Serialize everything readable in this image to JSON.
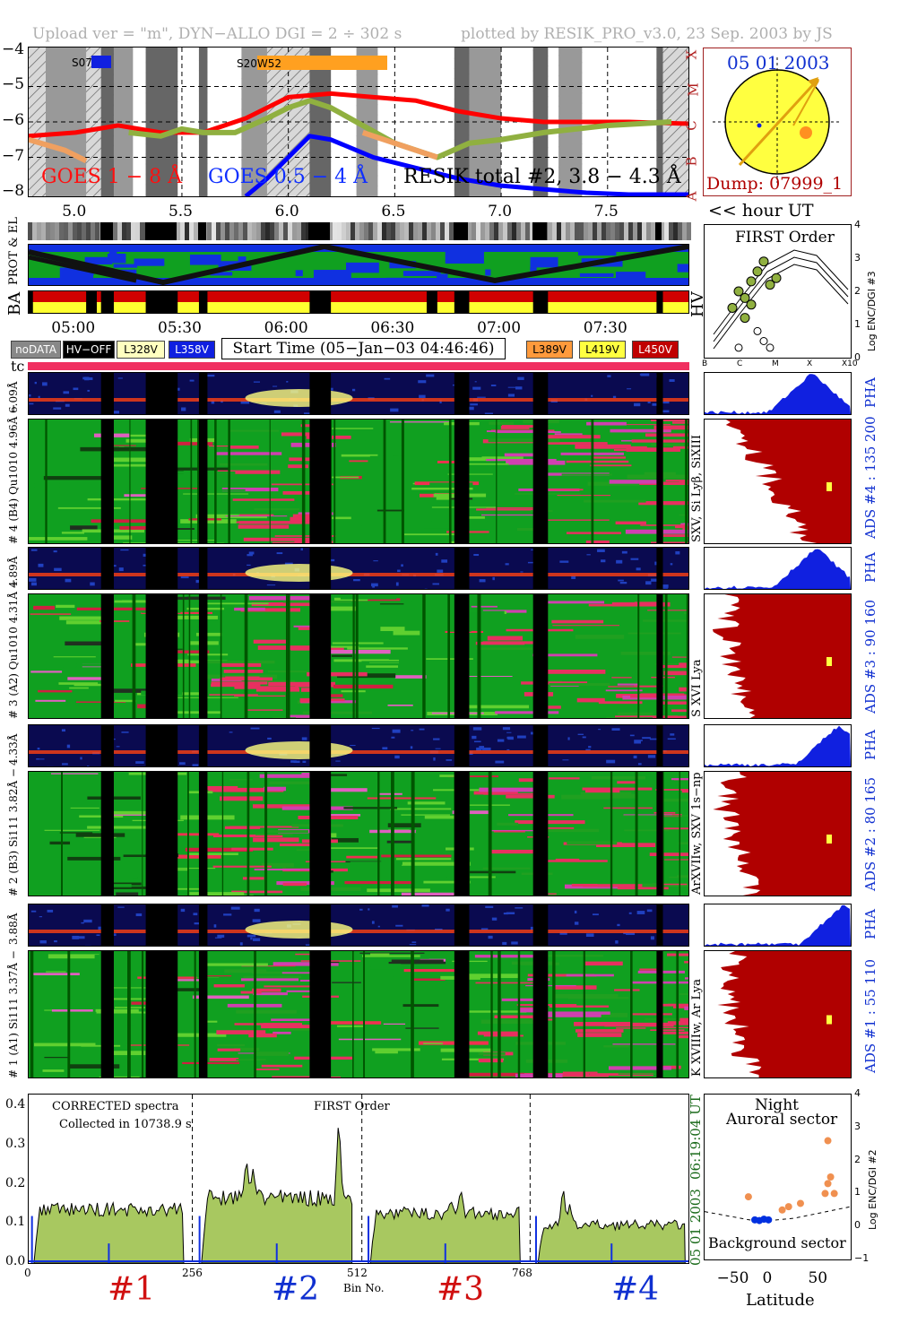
{
  "header": {
    "left": "Upload ver = \"m\", DYN−ALLO DGI =   2 ÷ 302 s",
    "right": "plotted by RESIK_PRO_v3.0, 23 Sep. 2003 by JS"
  },
  "goes_panel": {
    "y_ticks": [
      "−4",
      "−5",
      "−6",
      "−7",
      "−8"
    ],
    "class_letters": [
      "X",
      "M",
      "C",
      "B",
      "A"
    ],
    "region_labels": [
      "S07",
      "S20W52"
    ],
    "legend": [
      "GOES 1 − 8 Å",
      "GOES 0.5 − 4 Å",
      "RESIK total #2, 3.8 − 4.3 Å"
    ],
    "x_ticks": [
      "5.0",
      "5.5",
      "6.0",
      "6.5",
      "7.0",
      "7.5"
    ],
    "x_unit": "<< hour UT"
  },
  "sun_panel": {
    "date": "05 01 2003",
    "dump": "Dump: 07999_1"
  },
  "status_panel": {
    "prot_label": "PROT & EL",
    "ba_label": "BA",
    "hv_label": "HV",
    "time_ticks": [
      "05:00",
      "05:30",
      "06:00",
      "06:30",
      "07:00",
      "07:30"
    ],
    "legend_left": [
      {
        "text": "noDATA",
        "bg": "#888888",
        "fg": "#ffffff"
      },
      {
        "text": "HV−OFF",
        "bg": "#000000",
        "fg": "#ffffff"
      },
      {
        "text": "L328V",
        "bg": "#ffffc0",
        "fg": "#000000"
      },
      {
        "text": "L358V",
        "bg": "#1020e0",
        "fg": "#ffffff"
      }
    ],
    "start_time": "Start Time (05−Jan−03 04:46:46)",
    "legend_right": [
      {
        "text": "L389V",
        "bg": "#ff9a3c",
        "fg": "#000000"
      },
      {
        "text": "L419V",
        "bg": "#ffff40",
        "fg": "#000000"
      },
      {
        "text": "L450V",
        "bg": "#c00000",
        "fg": "#ffffff"
      }
    ],
    "tc_label": "tc"
  },
  "first_order_panel": {
    "title": "FIRST Order",
    "y_label": "Log ENC/DGI #3",
    "y_ticks": [
      "4",
      "3",
      "2",
      "1",
      "0"
    ],
    "x_ticks": [
      "B",
      "C",
      "M",
      "X",
      "X10"
    ]
  },
  "channels": [
    {
      "pha_label": "6.09Å",
      "main_label": "# 4 (B4) Qu1010 4.96Å −",
      "line_label": "SXV, Si Lyβ, SiXIII",
      "ads_label": "ADS #4 :   135 200"
    },
    {
      "pha_label": "4.89Å",
      "main_label": "# 3 (A2) Qu1010 4.31Å −",
      "line_label": "S XVI Lya",
      "ads_label": "ADS #3 :   90 160"
    },
    {
      "pha_label": "4.33Å",
      "main_label": "# 2 (B3) Si111 3.82Å −",
      "line_label": "ArXVIIw, SXV 1s−np",
      "ads_label": "ADS #2 :   80 165"
    },
    {
      "pha_label": "3.88Å",
      "main_label": "# 1 (A1) Si111 3.37Å −",
      "line_label": "K XVIIIw, Ar Lya",
      "ads_label": "ADS #1 :   55 110"
    }
  ],
  "pha_label": "PHA",
  "spectrum_panel": {
    "text1": "CORRECTED spectra",
    "text2": "Collected in 10738.9 s",
    "text3": "FIRST Order",
    "y_ticks": [
      "0.4",
      "0.3",
      "0.2",
      "0.1",
      "0.0"
    ],
    "x_ticks": [
      "0",
      "256",
      "512",
      "768"
    ],
    "x_label": "Bin No.",
    "side_date": "05 01 2003",
    "side_time": "06:19:04 UT",
    "channel_marks": [
      "#1",
      "#2",
      "#3",
      "#4"
    ]
  },
  "latitude_panel": {
    "title1": "Night",
    "title2": "Auroral sector",
    "bottom": "Background sector",
    "y_label": "Log ENC/DGI #2",
    "y_ticks": [
      "4",
      "3",
      "2",
      "1",
      "0",
      "−1"
    ],
    "x_ticks": [
      "−50",
      "0",
      "50"
    ],
    "x_label": "Latitude"
  },
  "chart_data": [
    {
      "type": "line",
      "x_range": [
        4.78,
        7.88
      ],
      "ylim": [
        -8.1,
        -3.9
      ],
      "series": [
        {
          "name": "GOES 1 − 8 Å",
          "color": "#ff0000",
          "x": [
            4.78,
            5.0,
            5.2,
            5.4,
            5.6,
            5.8,
            6.0,
            6.2,
            6.4,
            6.6,
            6.8,
            7.0,
            7.2,
            7.4,
            7.6,
            7.88
          ],
          "y": [
            -6.4,
            -6.3,
            -6.1,
            -6.3,
            -6.3,
            -5.9,
            -5.3,
            -5.2,
            -5.3,
            -5.4,
            -5.7,
            -5.9,
            -6.0,
            -6.0,
            -6.0,
            -6.05
          ]
        },
        {
          "name": "GOES 0.5 − 4 Å",
          "color": "#0000ff",
          "x": [
            5.8,
            5.9,
            6.0,
            6.1,
            6.2,
            6.4,
            6.6,
            6.8,
            7.0,
            7.2,
            7.4,
            7.6,
            7.88
          ],
          "y": [
            -8.1,
            -7.6,
            -7.0,
            -6.4,
            -6.5,
            -7.0,
            -7.3,
            -7.6,
            -7.8,
            -7.9,
            -8.0,
            -8.05,
            -8.05
          ]
        },
        {
          "name": "RESIK total #2, 3.8 − 4.3 Å",
          "color": "#90b040",
          "x": [
            5.25,
            5.4,
            5.5,
            5.6,
            5.75,
            5.9,
            6.0,
            6.1,
            6.2,
            6.35,
            6.5,
            6.7,
            6.85,
            7.0,
            7.2,
            7.5,
            7.8
          ],
          "y": [
            -6.3,
            -6.4,
            -6.2,
            -6.3,
            -6.3,
            -5.9,
            -5.6,
            -5.4,
            -5.6,
            -6.1,
            -6.6,
            -7.0,
            -6.6,
            -6.5,
            -6.3,
            -6.1,
            -6.0
          ]
        }
      ]
    },
    {
      "type": "scatter",
      "title": "FIRST Order",
      "ylabel": "Log ENC/DGI #3",
      "ylim": [
        0,
        4
      ],
      "points": [
        [
          0.15,
          1.5
        ],
        [
          0.2,
          2.0
        ],
        [
          0.25,
          1.8
        ],
        [
          0.3,
          2.3
        ],
        [
          0.35,
          2.6
        ],
        [
          0.4,
          2.9
        ],
        [
          0.25,
          1.2
        ],
        [
          0.3,
          1.6
        ],
        [
          0.45,
          2.2
        ],
        [
          0.5,
          2.4
        ],
        [
          0.35,
          0.8
        ],
        [
          0.4,
          0.5
        ],
        [
          0.45,
          0.3
        ],
        [
          0.2,
          0.3
        ]
      ]
    },
    {
      "type": "area",
      "xlabel": "Bin No.",
      "x_range": [
        0,
        1000
      ],
      "ylim": [
        0,
        0.43
      ],
      "segments": [
        {
          "x0": 8,
          "x1": 235,
          "level": 0.14
        },
        {
          "x0": 262,
          "x1": 490,
          "level": 0.17
        },
        {
          "x0": 518,
          "x1": 745,
          "level": 0.13
        },
        {
          "x0": 772,
          "x1": 995,
          "level": 0.1
        }
      ],
      "peaks": [
        [
          330,
          0.27
        ],
        [
          340,
          0.24
        ],
        [
          350,
          0.19
        ],
        [
          470,
          0.38
        ],
        [
          655,
          0.19
        ],
        [
          640,
          0.16
        ],
        [
          810,
          0.2
        ],
        [
          820,
          0.15
        ]
      ]
    },
    {
      "type": "scatter",
      "xlabel": "Latitude",
      "ylabel": "Log ENC/DGI #2",
      "xlim": [
        -80,
        80
      ],
      "ylim": [
        -1,
        4
      ],
      "series": [
        {
          "name": "Auroral sector",
          "color": "#f09050",
          "points": [
            [
              -32,
              0.9
            ],
            [
              5,
              0.5
            ],
            [
              12,
              0.6
            ],
            [
              25,
              0.7
            ],
            [
              52,
              1.0
            ],
            [
              55,
              1.3
            ],
            [
              58,
              1.5
            ],
            [
              62,
              1.0
            ],
            [
              55,
              2.6
            ]
          ]
        },
        {
          "name": "Background sector",
          "color": "#0030e0",
          "points": [
            [
              -25,
              0.2
            ],
            [
              -20,
              0.18
            ],
            [
              -15,
              0.22
            ],
            [
              -10,
              0.2
            ]
          ]
        }
      ]
    }
  ]
}
